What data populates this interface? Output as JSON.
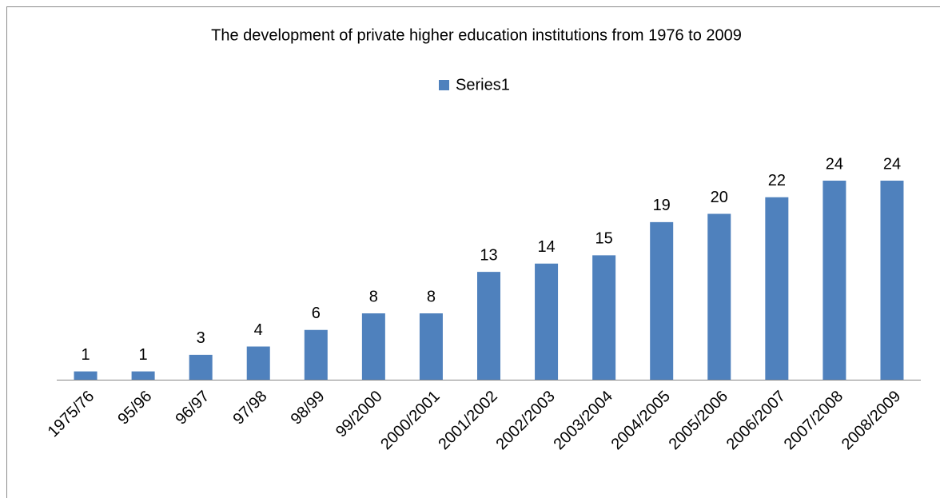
{
  "chart_data": {
    "type": "bar",
    "title": "The development of private higher education institutions from 1976 to 2009",
    "categories": [
      "1975/76",
      "95/96",
      "96/97",
      "97/98",
      "98/99",
      "99/2000",
      "2000/2001",
      "2001/2002",
      "2002/2003",
      "2003/2004",
      "2004/2005",
      "2005/2006",
      "2006/2007",
      "2007/2008",
      "2008/2009"
    ],
    "series": [
      {
        "name": "Series1",
        "color": "#4f81bd",
        "values": [
          1,
          1,
          3,
          4,
          6,
          8,
          8,
          13,
          14,
          15,
          19,
          20,
          22,
          24,
          24
        ]
      }
    ],
    "legend": "top"
  }
}
